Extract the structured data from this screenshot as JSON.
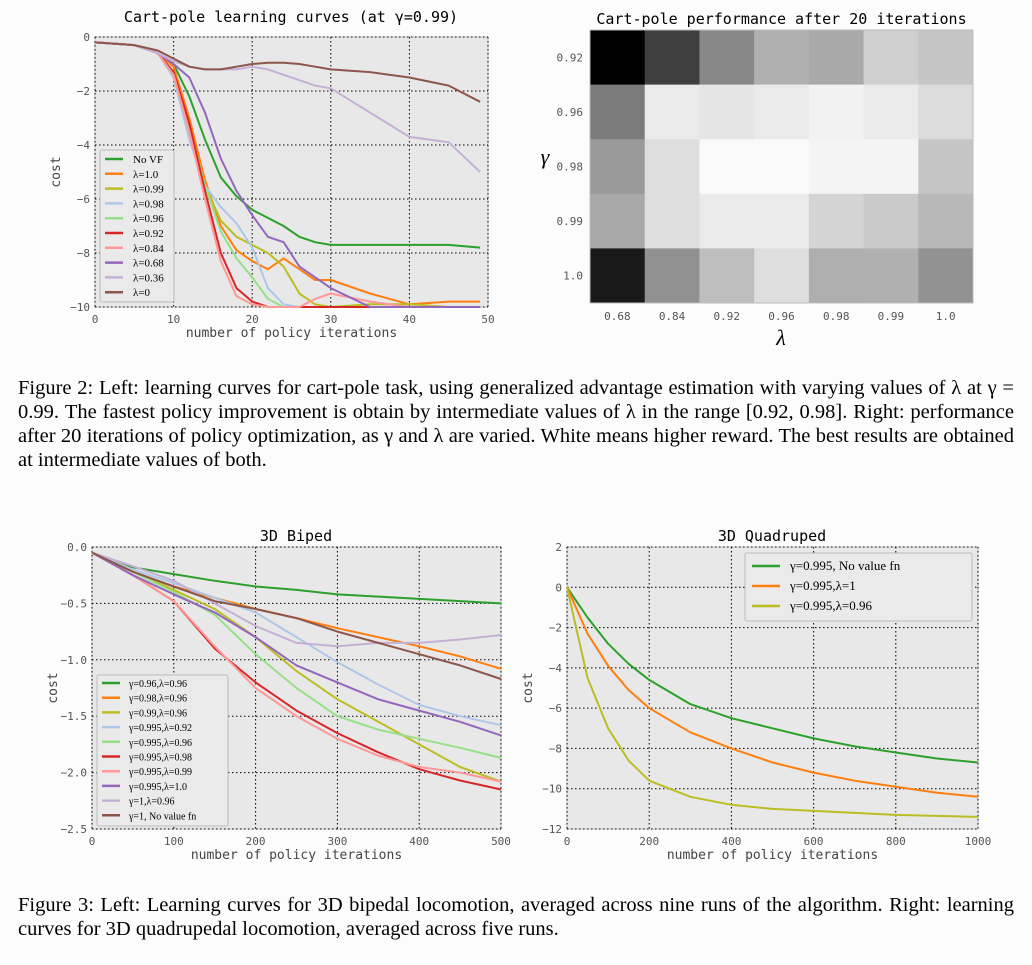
{
  "figure2": {
    "caption": "Figure 2:   Left: learning curves for cart-pole task, using generalized advantage estimation with varying values of λ at γ = 0.99. The fastest policy improvement is obtain by intermediate values of λ in the range [0.92, 0.98]. Right: performance after 20 iterations of policy optimization, as γ and λ are varied. White means higher reward. The best results are obtained at intermediate values of both."
  },
  "figure3": {
    "caption": "Figure 3: Left: Learning curves for 3D bipedal locomotion, averaged across nine runs of the algorithm. Right: learning curves for 3D quadrupedal locomotion, averaged across five runs."
  },
  "chart_data": [
    {
      "id": "cartpole",
      "type": "line",
      "title": "Cart-pole learning curves (at γ=0.99)",
      "xlabel": "number of policy iterations",
      "ylabel": "cost",
      "xlim": [
        0,
        50
      ],
      "ylim": [
        -10,
        0
      ],
      "xticks": [
        0,
        10,
        20,
        30,
        40,
        50
      ],
      "yticks": [
        0,
        -2,
        -4,
        -6,
        -8,
        -10
      ],
      "ytick_labels": [
        "0",
        "−2",
        "−4",
        "−6",
        "−8",
        "−10"
      ],
      "grid": true,
      "legend": "lower-left",
      "x": [
        0,
        5,
        8,
        10,
        12,
        14,
        16,
        18,
        20,
        22,
        24,
        26,
        28,
        30,
        35,
        40,
        45,
        49
      ],
      "series": [
        {
          "name": "No VF",
          "color": "#2ca02c",
          "values": [
            -0.2,
            -0.3,
            -0.6,
            -1.0,
            -2.2,
            -3.8,
            -5.2,
            -5.9,
            -6.4,
            -6.7,
            -7.0,
            -7.4,
            -7.6,
            -7.7,
            -7.7,
            -7.7,
            -7.7,
            -7.8
          ]
        },
        {
          "name": "λ=1.0",
          "color": "#ff7f0e",
          "values": [
            -0.2,
            -0.3,
            -0.6,
            -1.1,
            -3.0,
            -5.3,
            -7.0,
            -7.9,
            -8.3,
            -8.6,
            -8.2,
            -8.6,
            -9.0,
            -9.0,
            -9.5,
            -9.9,
            -9.8,
            -9.8
          ]
        },
        {
          "name": "λ=0.99",
          "color": "#bcbd22",
          "values": [
            -0.2,
            -0.3,
            -0.6,
            -1.5,
            -3.5,
            -5.5,
            -6.8,
            -7.4,
            -7.7,
            -8.0,
            -8.5,
            -9.5,
            -9.9,
            -10,
            -9.9,
            -9.9,
            -10,
            -10
          ]
        },
        {
          "name": "λ=0.98",
          "color": "#aec7e8",
          "values": [
            -0.2,
            -0.3,
            -0.6,
            -1.5,
            -3.8,
            -5.5,
            -6.3,
            -6.9,
            -7.8,
            -9.3,
            -9.9,
            -10,
            -10,
            -10,
            -10,
            -10,
            -10,
            -10
          ]
        },
        {
          "name": "λ=0.96",
          "color": "#98df8a",
          "values": [
            -0.2,
            -0.3,
            -0.6,
            -1.3,
            -3.3,
            -5.5,
            -7.2,
            -8.2,
            -8.9,
            -9.7,
            -10,
            -10,
            -10,
            -10,
            -10,
            -10,
            -10,
            -10
          ]
        },
        {
          "name": "λ=0.92",
          "color": "#d62728",
          "values": [
            -0.2,
            -0.3,
            -0.6,
            -1.3,
            -3.2,
            -5.7,
            -8.0,
            -9.3,
            -9.8,
            -10,
            -10,
            -10,
            -10,
            -10,
            -10,
            -10,
            -10,
            -10
          ]
        },
        {
          "name": "λ=0.84",
          "color": "#ff9896",
          "values": [
            -0.2,
            -0.3,
            -0.6,
            -1.4,
            -3.5,
            -6.0,
            -8.3,
            -9.6,
            -9.9,
            -10,
            -10,
            -10,
            -9.7,
            -9.5,
            -9.8,
            -10,
            -10,
            -10
          ]
        },
        {
          "name": "λ=0.68",
          "color": "#9467bd",
          "values": [
            -0.2,
            -0.3,
            -0.6,
            -1.0,
            -1.5,
            -2.8,
            -4.5,
            -5.7,
            -6.6,
            -7.4,
            -7.6,
            -8.5,
            -8.9,
            -9.3,
            -10,
            -10,
            -10,
            -10
          ]
        },
        {
          "name": "λ=0.36",
          "color": "#c5b0d5",
          "values": [
            -0.2,
            -0.3,
            -0.6,
            -0.9,
            -1.1,
            -1.2,
            -1.2,
            -1.2,
            -1.1,
            -1.2,
            -1.4,
            -1.6,
            -1.8,
            -1.9,
            -2.8,
            -3.7,
            -3.9,
            -5.0
          ]
        },
        {
          "name": "λ=0",
          "color": "#8c564b",
          "values": [
            -0.2,
            -0.3,
            -0.5,
            -0.8,
            -1.1,
            -1.2,
            -1.2,
            -1.1,
            -1.0,
            -0.95,
            -0.95,
            -1.0,
            -1.1,
            -1.2,
            -1.3,
            -1.5,
            -1.8,
            -2.4
          ]
        }
      ]
    },
    {
      "id": "heatmap",
      "type": "heatmap",
      "title": "Cart-pole performance after 20 iterations",
      "xlabel": "λ",
      "ylabel": "γ",
      "x_categories": [
        "0.68",
        "0.84",
        "0.92",
        "0.96",
        "0.98",
        "0.99",
        "1.0"
      ],
      "y_categories": [
        "0.92",
        "0.96",
        "0.98",
        "0.99",
        "1.0"
      ],
      "colormap": "gray (white = higher reward)",
      "values": [
        [
          0.0,
          0.25,
          0.54,
          0.7,
          0.67,
          0.82,
          0.78
        ],
        [
          0.49,
          0.93,
          0.91,
          0.93,
          0.96,
          0.93,
          0.87
        ],
        [
          0.61,
          0.88,
          0.99,
          0.99,
          0.97,
          0.97,
          0.78
        ],
        [
          0.67,
          0.88,
          0.93,
          0.93,
          0.84,
          0.8,
          0.73
        ],
        [
          0.1,
          0.57,
          0.75,
          0.88,
          0.69,
          0.7,
          0.58
        ]
      ]
    },
    {
      "id": "biped",
      "type": "line",
      "title": "3D Biped",
      "xlabel": "number of policy iterations",
      "ylabel": "cost",
      "xlim": [
        0,
        500
      ],
      "ylim": [
        -2.5,
        0
      ],
      "xticks": [
        0,
        100,
        200,
        300,
        400,
        500
      ],
      "yticks": [
        0,
        -0.5,
        -1.0,
        -1.5,
        -2.0,
        -2.5
      ],
      "ytick_labels": [
        "0.0",
        "−0.5",
        "−1.0",
        "−1.5",
        "−2.0",
        "−2.5"
      ],
      "grid": true,
      "legend": "lower-left",
      "x": [
        0,
        50,
        100,
        150,
        200,
        250,
        300,
        350,
        400,
        450,
        500
      ],
      "series": [
        {
          "name": "γ=0.96,λ=0.96",
          "color": "#2ca02c",
          "values": [
            -0.05,
            -0.18,
            -0.24,
            -0.3,
            -0.35,
            -0.38,
            -0.42,
            -0.44,
            -0.46,
            -0.48,
            -0.5
          ]
        },
        {
          "name": "γ=0.98,λ=0.96",
          "color": "#ff7f0e",
          "values": [
            -0.05,
            -0.22,
            -0.35,
            -0.45,
            -0.55,
            -0.63,
            -0.72,
            -0.8,
            -0.88,
            -0.97,
            -1.08
          ]
        },
        {
          "name": "γ=0.99,λ=0.96",
          "color": "#bcbd22",
          "values": [
            -0.05,
            -0.22,
            -0.38,
            -0.55,
            -0.8,
            -1.1,
            -1.35,
            -1.55,
            -1.75,
            -1.95,
            -2.08
          ]
        },
        {
          "name": "γ=0.995,λ=0.92",
          "color": "#aec7e8",
          "values": [
            -0.05,
            -0.2,
            -0.32,
            -0.45,
            -0.58,
            -0.8,
            -1.02,
            -1.22,
            -1.4,
            -1.5,
            -1.58
          ]
        },
        {
          "name": "γ=0.995,λ=0.96",
          "color": "#98df8a",
          "values": [
            -0.05,
            -0.22,
            -0.4,
            -0.6,
            -0.95,
            -1.25,
            -1.5,
            -1.62,
            -1.7,
            -1.78,
            -1.87
          ]
        },
        {
          "name": "γ=0.995,λ=0.98",
          "color": "#d62728",
          "values": [
            -0.05,
            -0.25,
            -0.48,
            -0.9,
            -1.2,
            -1.45,
            -1.65,
            -1.82,
            -1.97,
            -2.07,
            -2.15
          ]
        },
        {
          "name": "γ=0.995,λ=0.99",
          "color": "#ff9896",
          "values": [
            -0.05,
            -0.25,
            -0.48,
            -0.88,
            -1.25,
            -1.5,
            -1.7,
            -1.85,
            -1.95,
            -2.0,
            -2.08
          ]
        },
        {
          "name": "γ=0.995,λ=1.0",
          "color": "#9467bd",
          "values": [
            -0.05,
            -0.25,
            -0.42,
            -0.58,
            -0.8,
            -1.05,
            -1.2,
            -1.35,
            -1.45,
            -1.55,
            -1.67
          ]
        },
        {
          "name": "γ=1,λ=0.96",
          "color": "#c5b0d5",
          "values": [
            -0.05,
            -0.17,
            -0.3,
            -0.5,
            -0.7,
            -0.85,
            -0.88,
            -0.85,
            -0.85,
            -0.82,
            -0.78
          ]
        },
        {
          "name": "γ=1, No value fn",
          "color": "#8c564b",
          "values": [
            -0.05,
            -0.22,
            -0.35,
            -0.48,
            -0.55,
            -0.63,
            -0.75,
            -0.85,
            -0.95,
            -1.05,
            -1.17
          ]
        }
      ]
    },
    {
      "id": "quadruped",
      "type": "line",
      "title": "3D Quadruped",
      "xlabel": "number of policy iterations",
      "ylabel": "cost",
      "xlim": [
        0,
        1000
      ],
      "ylim": [
        -12,
        2
      ],
      "xticks": [
        0,
        200,
        400,
        600,
        800,
        1000
      ],
      "yticks": [
        2,
        0,
        -2,
        -4,
        -6,
        -8,
        -10,
        -12
      ],
      "ytick_labels": [
        "2",
        "0",
        "−2",
        "−4",
        "−6",
        "−8",
        "−10",
        "−12"
      ],
      "grid": true,
      "legend": "top-right",
      "x": [
        0,
        50,
        100,
        150,
        200,
        300,
        400,
        500,
        600,
        700,
        800,
        900,
        1000
      ],
      "series": [
        {
          "name": "γ=0.995, No value fn",
          "color": "#2ca02c",
          "values": [
            0,
            -1.5,
            -2.8,
            -3.8,
            -4.6,
            -5.8,
            -6.5,
            -7.0,
            -7.5,
            -7.9,
            -8.2,
            -8.5,
            -8.7
          ]
        },
        {
          "name": "γ=0.995,λ=1",
          "color": "#ff7f0e",
          "values": [
            0,
            -2.3,
            -3.9,
            -5.1,
            -6.0,
            -7.2,
            -8.0,
            -8.7,
            -9.2,
            -9.6,
            -9.9,
            -10.2,
            -10.4
          ]
        },
        {
          "name": "γ=0.995,λ=0.96",
          "color": "#bcbd22",
          "values": [
            0,
            -4.5,
            -7.0,
            -8.6,
            -9.6,
            -10.4,
            -10.8,
            -11.0,
            -11.1,
            -11.2,
            -11.3,
            -11.35,
            -11.4
          ]
        }
      ]
    }
  ]
}
